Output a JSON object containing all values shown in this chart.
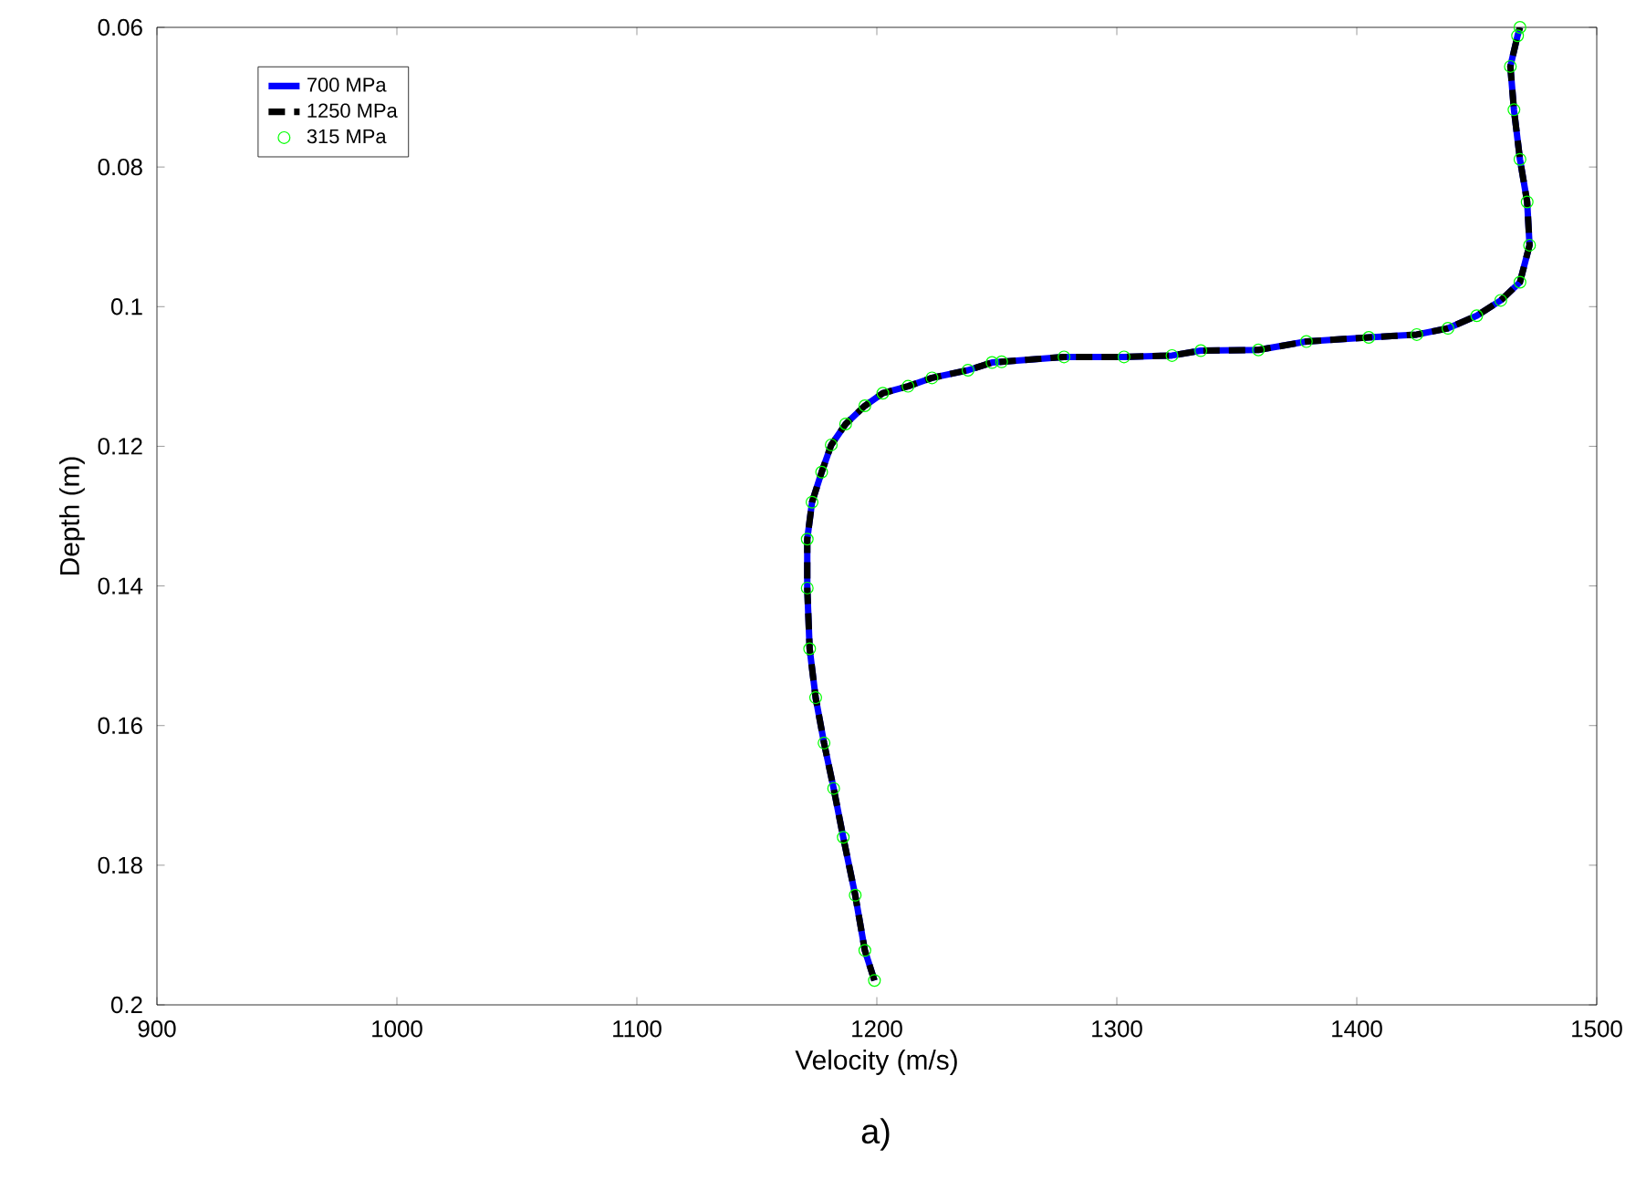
{
  "chart_data": {
    "type": "line",
    "xlabel": "Velocity (m/s)",
    "ylabel": "Depth (m)",
    "annotations": [
      "a)"
    ],
    "xlim": [
      900,
      1500
    ],
    "xticks": [
      900,
      1000,
      1100,
      1200,
      1300,
      1400,
      1500
    ],
    "ylim": [
      0.2,
      0.06
    ],
    "yticks": [
      0.06,
      0.08,
      0.1,
      0.12,
      0.14,
      0.16,
      0.18,
      0.2
    ],
    "legend": "top left",
    "grid": false,
    "series": [
      {
        "name": "700 MPa",
        "color": "#0000ff",
        "line_style": "solid",
        "x": [
          1199,
          1195,
          1191,
          1186,
          1182,
          1178,
          1174.5,
          1172,
          1171,
          1171,
          1173,
          1177,
          1181,
          1187,
          1195,
          1202.5,
          1213,
          1223,
          1238,
          1248,
          1252,
          1278,
          1303,
          1323,
          1335,
          1359,
          1379,
          1405,
          1425,
          1438,
          1450,
          1460,
          1468,
          1472,
          1471,
          1468,
          1465.5,
          1464,
          1467,
          1468
        ],
        "values": [
          0.1965,
          0.1922,
          0.1843,
          0.176,
          0.169,
          0.1625,
          0.156,
          0.149,
          0.1403,
          0.1333,
          0.128,
          0.1237,
          0.1198,
          0.1168,
          0.1142,
          0.1124,
          0.1114,
          0.1102,
          0.1091,
          0.108,
          0.1079,
          0.1072,
          0.1072,
          0.107,
          0.1063,
          0.1062,
          0.105,
          0.1044,
          0.104,
          0.1031,
          0.1013,
          0.0991,
          0.0965,
          0.0912,
          0.085,
          0.0789,
          0.0718,
          0.0656,
          0.0612,
          0.06
        ]
      },
      {
        "name": "1250 MPa",
        "color": "#000000",
        "line_style": "dashed",
        "x": [
          1199,
          1195,
          1191,
          1186,
          1182,
          1178,
          1174.5,
          1172,
          1171,
          1171,
          1173,
          1177,
          1181,
          1187,
          1195,
          1202.5,
          1213,
          1223,
          1238,
          1248,
          1252,
          1278,
          1303,
          1323,
          1335,
          1359,
          1379,
          1405,
          1425,
          1438,
          1450,
          1460,
          1468,
          1472,
          1471,
          1468,
          1465.5,
          1464,
          1467,
          1468
        ],
        "values": [
          0.1965,
          0.1922,
          0.1843,
          0.176,
          0.169,
          0.1625,
          0.156,
          0.149,
          0.1403,
          0.1333,
          0.128,
          0.1237,
          0.1198,
          0.1168,
          0.1142,
          0.1124,
          0.1114,
          0.1102,
          0.1091,
          0.108,
          0.1079,
          0.1072,
          0.1072,
          0.107,
          0.1063,
          0.1062,
          0.105,
          0.1044,
          0.104,
          0.1031,
          0.1013,
          0.0991,
          0.0965,
          0.0912,
          0.085,
          0.0789,
          0.0718,
          0.0656,
          0.0612,
          0.06
        ]
      },
      {
        "name": "315 MPa",
        "type": "scatter",
        "marker": "circle",
        "color": "#00ff00",
        "x": [
          1199,
          1195,
          1191,
          1186,
          1182,
          1178,
          1174.5,
          1172,
          1171,
          1171,
          1173,
          1177,
          1181,
          1187,
          1195,
          1202.5,
          1213,
          1223,
          1238,
          1248,
          1252,
          1278,
          1303,
          1323,
          1335,
          1359,
          1379,
          1405,
          1425,
          1438,
          1450,
          1460,
          1468,
          1472,
          1471,
          1468,
          1465.5,
          1464,
          1467,
          1468
        ],
        "values": [
          0.1965,
          0.1922,
          0.1843,
          0.176,
          0.169,
          0.1625,
          0.156,
          0.149,
          0.1403,
          0.1333,
          0.128,
          0.1237,
          0.1198,
          0.1168,
          0.1142,
          0.1124,
          0.1114,
          0.1102,
          0.1091,
          0.108,
          0.1079,
          0.1072,
          0.1072,
          0.107,
          0.1063,
          0.1062,
          0.105,
          0.1044,
          0.104,
          0.1031,
          0.1013,
          0.0991,
          0.0965,
          0.0912,
          0.085,
          0.0789,
          0.0718,
          0.0656,
          0.0612,
          0.06
        ]
      }
    ]
  }
}
